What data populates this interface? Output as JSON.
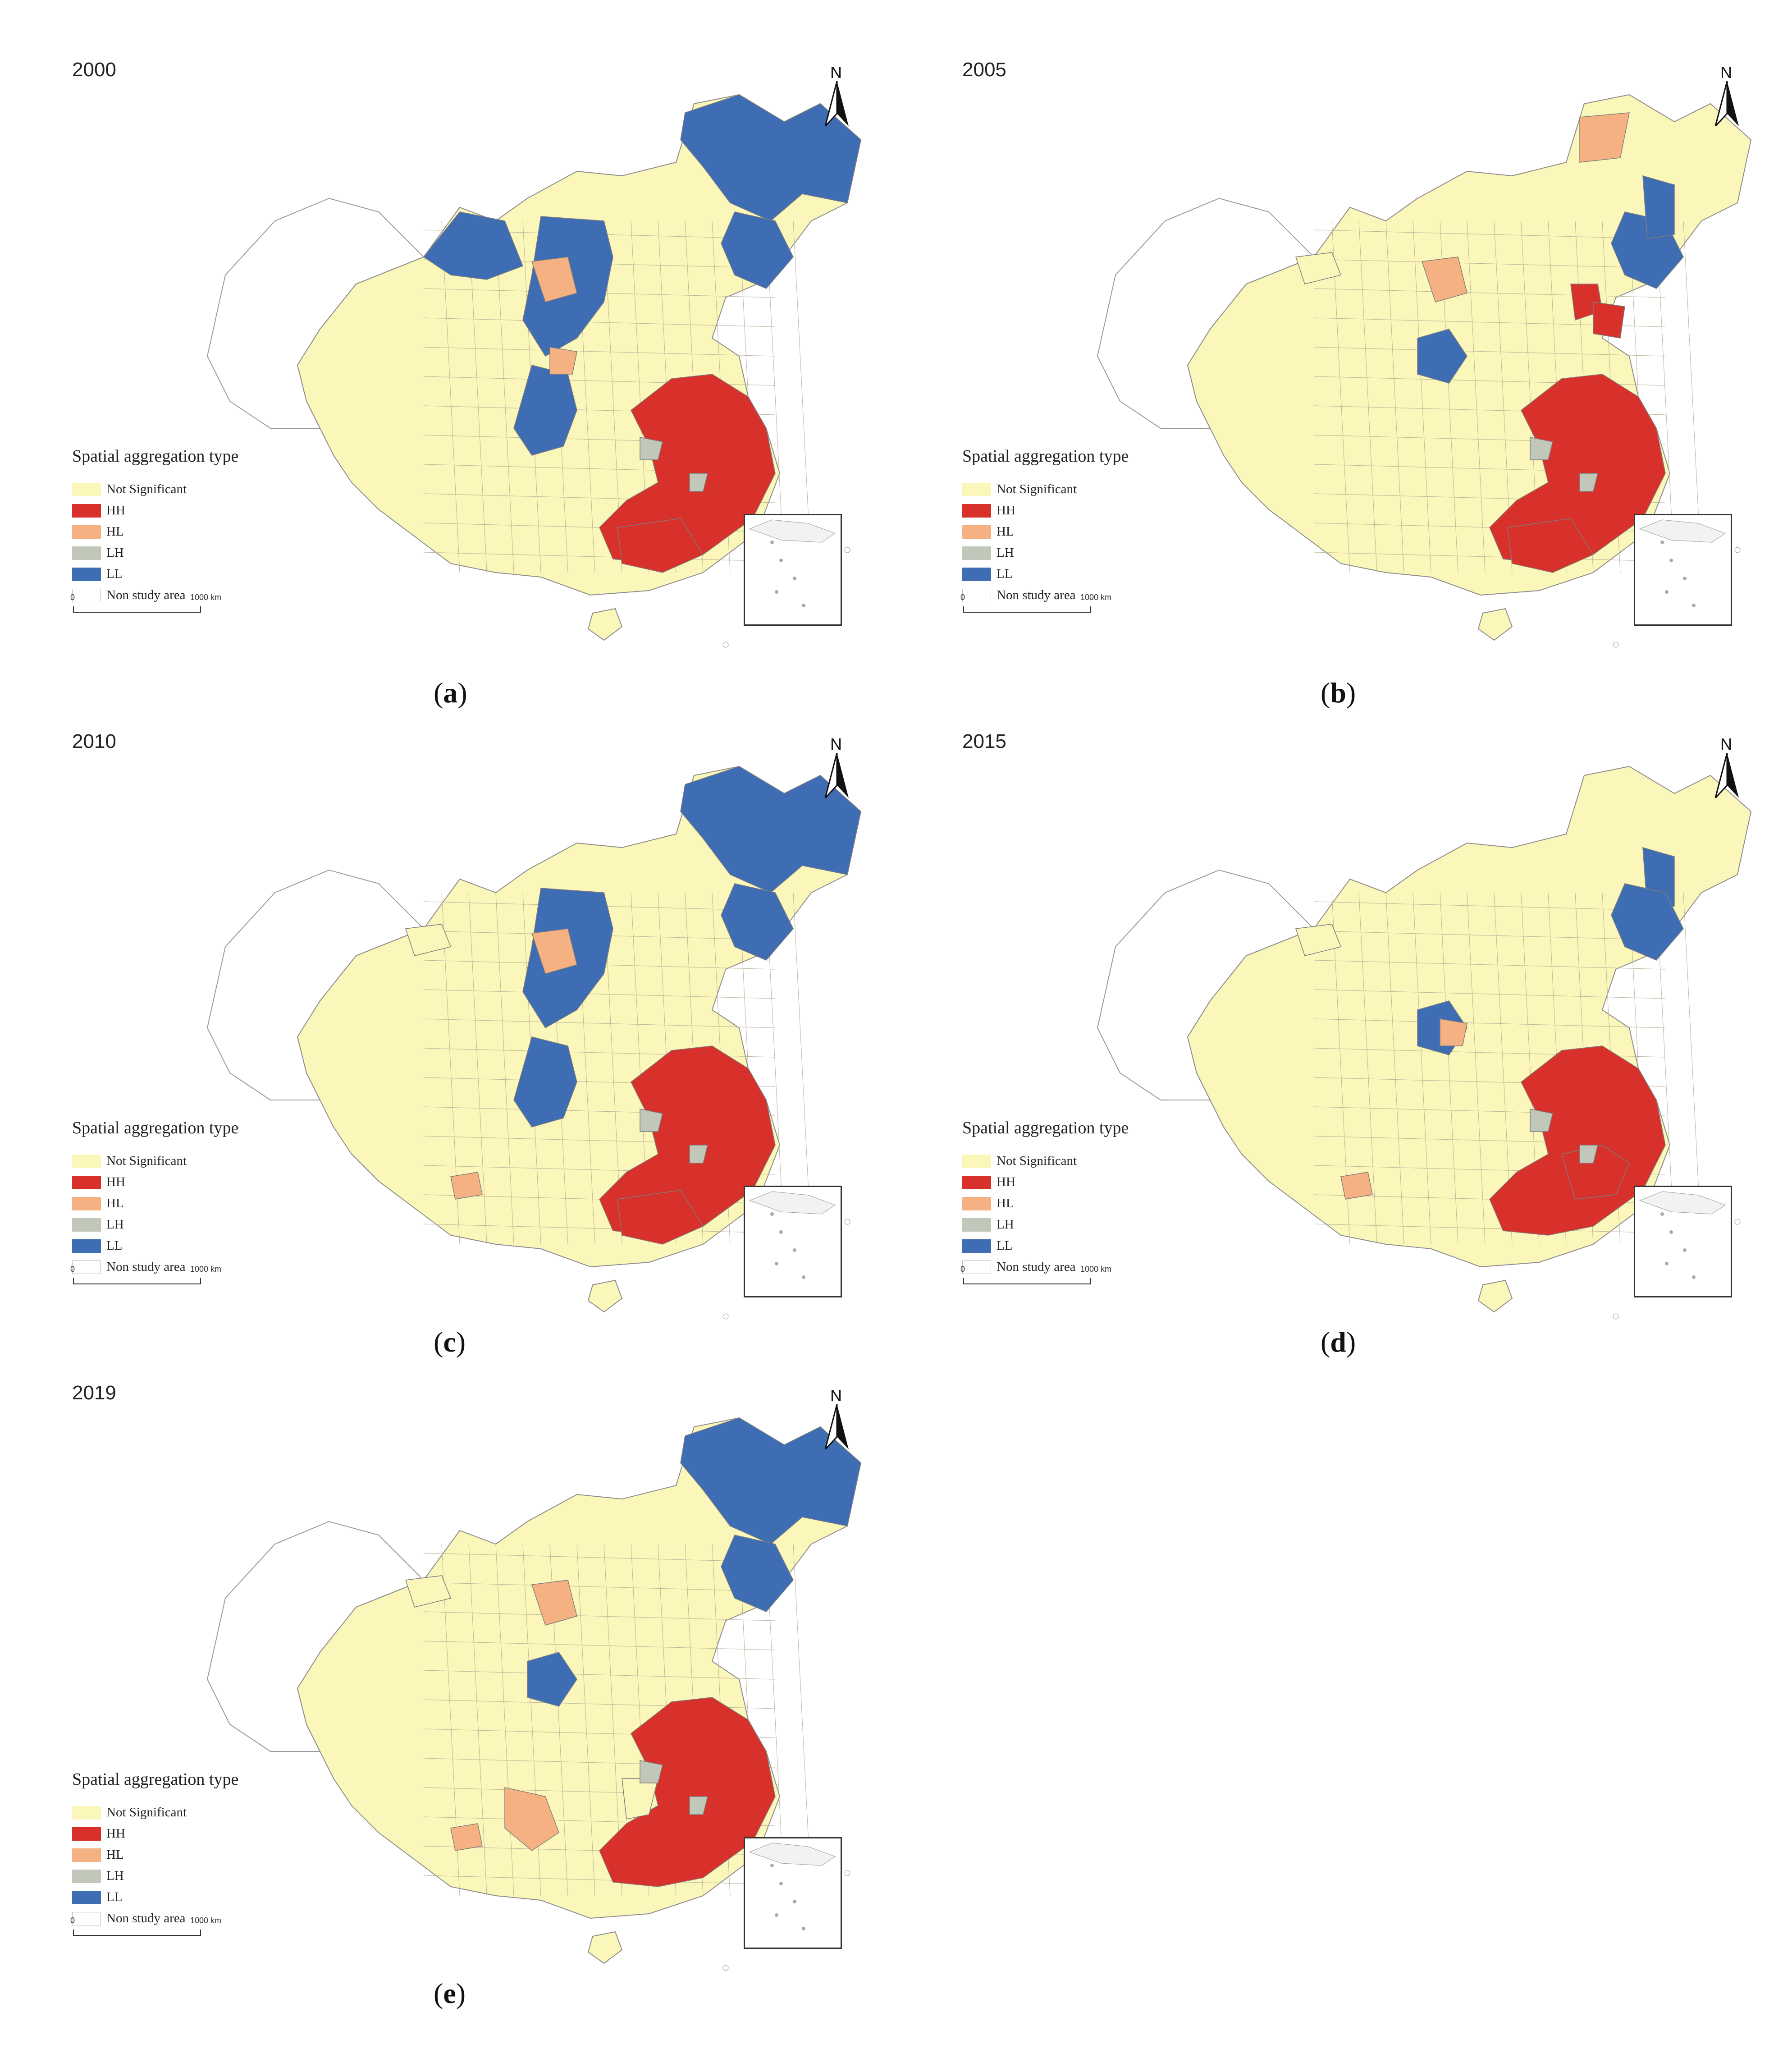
{
  "legend": {
    "title": "Spatial aggregation type",
    "items": [
      {
        "key": "ns",
        "label": "Not Significant",
        "color": "#fbf6b9"
      },
      {
        "key": "hh",
        "label": "HH",
        "color": "#d8302b"
      },
      {
        "key": "hl",
        "label": "HL",
        "color": "#f5b182"
      },
      {
        "key": "lh",
        "label": "LH",
        "color": "#c2c8b9"
      },
      {
        "key": "ll",
        "label": "LL",
        "color": "#3e6db3"
      },
      {
        "key": "non",
        "label": "Non study area",
        "color": "#ffffff"
      }
    ]
  },
  "north_label": "N",
  "scale": {
    "start": "0",
    "end": "1000 km"
  },
  "panels": [
    {
      "year": "2000",
      "caption_letter": "a"
    },
    {
      "year": "2005",
      "caption_letter": "b"
    },
    {
      "year": "2010",
      "caption_letter": "c"
    },
    {
      "year": "2015",
      "caption_letter": "d"
    },
    {
      "year": "2019",
      "caption_letter": "e"
    }
  ]
}
